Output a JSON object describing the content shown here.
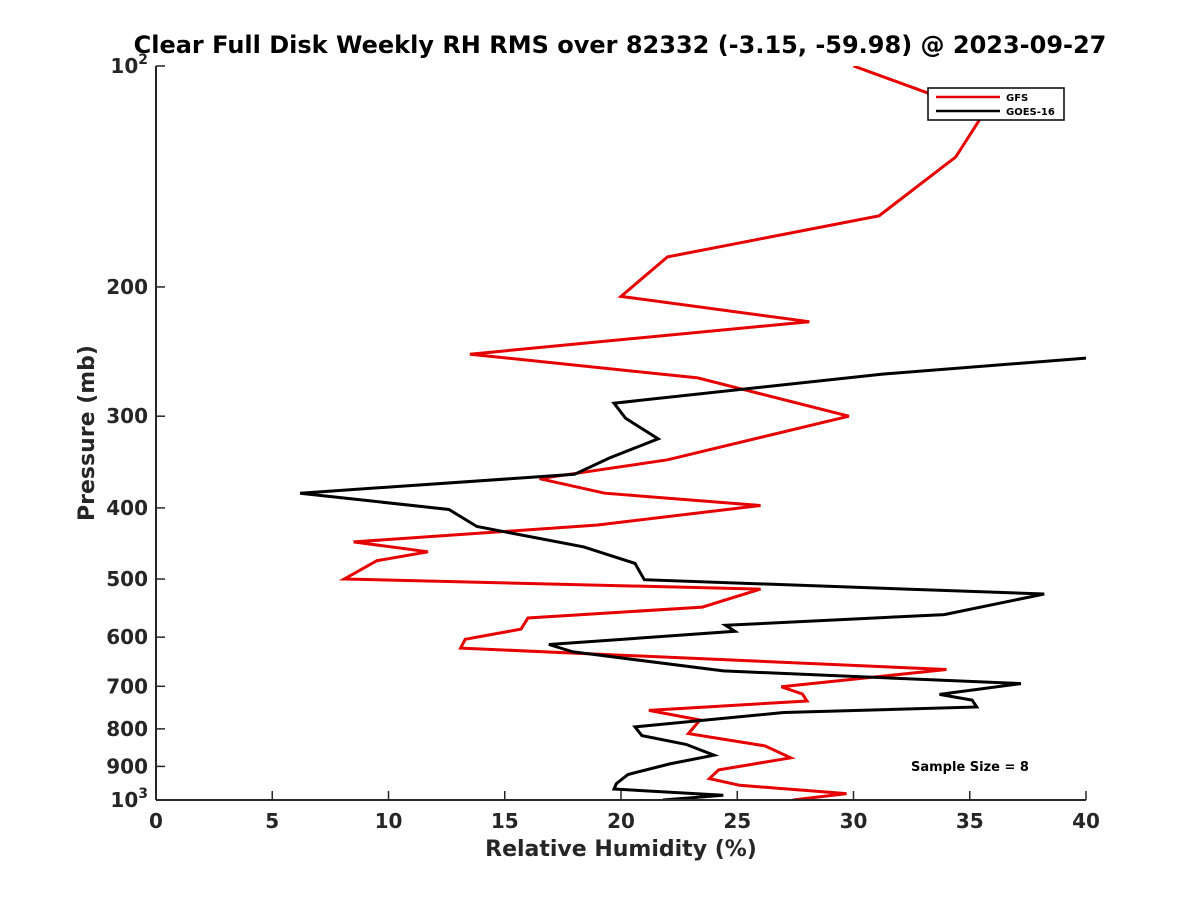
{
  "chart_data": {
    "type": "line",
    "title": "Clear Full Disk Weekly RH RMS over 82332 (-3.15, -59.98) @ 2023-09-27",
    "xlabel": "Relative Humidity (%)",
    "ylabel": "Pressure (mb)",
    "xlim": [
      0,
      40
    ],
    "ylim": [
      100,
      1000
    ],
    "y_scale": "log",
    "y_reversed": true,
    "grid": false,
    "legend_position": "top-right",
    "x_ticks": [
      "0",
      "5",
      "10",
      "15",
      "20",
      "25",
      "30",
      "35",
      "40"
    ],
    "y_ticks": [
      {
        "value": 100,
        "label": "10",
        "sup": "2"
      },
      {
        "value": 200,
        "label": "200",
        "sup": ""
      },
      {
        "value": 300,
        "label": "300",
        "sup": ""
      },
      {
        "value": 400,
        "label": "400",
        "sup": ""
      },
      {
        "value": 500,
        "label": "500",
        "sup": ""
      },
      {
        "value": 600,
        "label": "600",
        "sup": ""
      },
      {
        "value": 700,
        "label": "700",
        "sup": ""
      },
      {
        "value": 800,
        "label": "800",
        "sup": ""
      },
      {
        "value": 900,
        "label": "900",
        "sup": ""
      },
      {
        "value": 1000,
        "label": "10",
        "sup": "3"
      }
    ],
    "series": [
      {
        "name": "GFS",
        "color": "#e60000",
        "points": [
          [
            30,
            100
          ],
          [
            35.6,
            116
          ],
          [
            34.4,
            133
          ],
          [
            31.1,
            160
          ],
          [
            22,
            182
          ],
          [
            20,
            206
          ],
          [
            28.1,
            223
          ],
          [
            13.5,
            247
          ],
          [
            23.3,
            266
          ],
          [
            29.8,
            300
          ],
          [
            22,
            344
          ],
          [
            16.5,
            365
          ],
          [
            19.3,
            382
          ],
          [
            26,
            397
          ],
          [
            19,
            422
          ],
          [
            8.5,
            445
          ],
          [
            11.7,
            459
          ],
          [
            9.5,
            472
          ],
          [
            8.1,
            500
          ],
          [
            26,
            516
          ],
          [
            23.5,
            546
          ],
          [
            16,
            565
          ],
          [
            15.7,
            585
          ],
          [
            13.3,
            604
          ],
          [
            13.1,
            621
          ],
          [
            34,
            664
          ],
          [
            26.9,
            701
          ],
          [
            27.8,
            717
          ],
          [
            28,
            733
          ],
          [
            21.2,
            755
          ],
          [
            23.4,
            778
          ],
          [
            22.9,
            812
          ],
          [
            26.2,
            844
          ],
          [
            27.3,
            876
          ],
          [
            24.2,
            910
          ],
          [
            23.8,
            935
          ],
          [
            25.1,
            955
          ],
          [
            29.7,
            980
          ],
          [
            27.4,
            1000
          ]
        ]
      },
      {
        "name": "GOES-16",
        "color": "#000000",
        "points": [
          [
            40,
            250
          ],
          [
            31.2,
            263
          ],
          [
            19.7,
            288
          ],
          [
            20.2,
            302
          ],
          [
            21.6,
            322
          ],
          [
            19.5,
            342
          ],
          [
            18,
            360
          ],
          [
            6.2,
            382
          ],
          [
            12.6,
            402
          ],
          [
            13.8,
            424
          ],
          [
            18.4,
            452
          ],
          [
            20.6,
            476
          ],
          [
            21,
            501
          ],
          [
            38.2,
            524
          ],
          [
            33.9,
            559
          ],
          [
            24.5,
            578
          ],
          [
            24.9,
            589
          ],
          [
            16.9,
            614
          ],
          [
            17.9,
            628
          ],
          [
            24.4,
            667
          ],
          [
            37.2,
            694
          ],
          [
            33.7,
            718
          ],
          [
            35.1,
            731
          ],
          [
            35.3,
            747
          ],
          [
            27,
            760
          ],
          [
            20.6,
            795
          ],
          [
            20.9,
            817
          ],
          [
            22.8,
            840
          ],
          [
            24,
            869
          ],
          [
            22.1,
            893
          ],
          [
            20.3,
            923
          ],
          [
            19.8,
            950
          ],
          [
            19.7,
            966
          ],
          [
            24.4,
            985
          ],
          [
            21.8,
            1000
          ]
        ]
      }
    ],
    "annotation": "Sample Size = 8"
  }
}
